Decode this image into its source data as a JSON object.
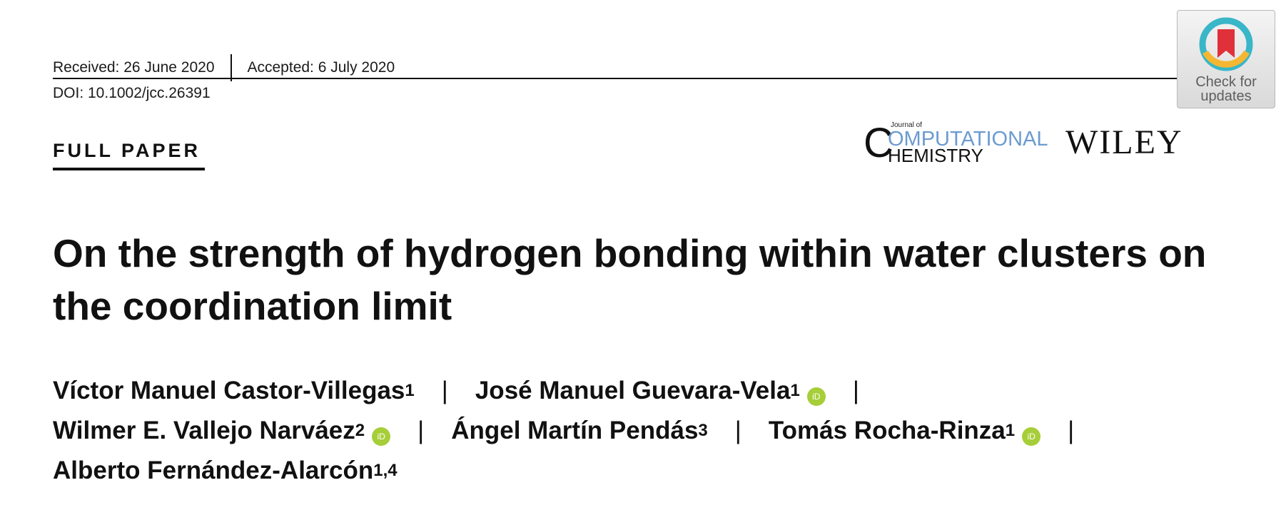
{
  "header": {
    "received": "Received: 26 June 2020",
    "accepted": "Accepted: 6 July 2020",
    "doi": "DOI: 10.1002/jcc.26391"
  },
  "badge": {
    "line1": "Check for",
    "line2": "updates",
    "icon": "bookmark-icon"
  },
  "section_label": "FULL PAPER",
  "journal": {
    "journal_of": "Journal of",
    "big_letter": "C",
    "line1": "OMPUTATIONAL",
    "line2": "HEMISTRY",
    "publisher": "WILEY"
  },
  "title": "On the strength of hydrogen bonding within water clusters on the coordination limit",
  "authors": [
    {
      "name": "Víctor Manuel Castor-Villegas",
      "aff": "1",
      "orcid": false
    },
    {
      "name": "José Manuel Guevara-Vela",
      "aff": "1",
      "orcid": true
    },
    {
      "name": "Wilmer E. Vallejo Narváez",
      "aff": "2",
      "orcid": true
    },
    {
      "name": "Ángel Martín Pendás",
      "aff": "3",
      "orcid": false
    },
    {
      "name": "Tomás Rocha-Rinza",
      "aff": "1",
      "orcid": true
    },
    {
      "name": "Alberto Fernández-Alarcón",
      "aff": "1,4",
      "orcid": false
    }
  ],
  "separator": "|",
  "orcid_label": "iD",
  "colors": {
    "orcid": "#a6ce39",
    "journal_accent": "#6b9bd1",
    "badge_ring_red": "#e0303a",
    "badge_ring_yellow": "#f5b731",
    "badge_ring_teal": "#39b6c8"
  }
}
